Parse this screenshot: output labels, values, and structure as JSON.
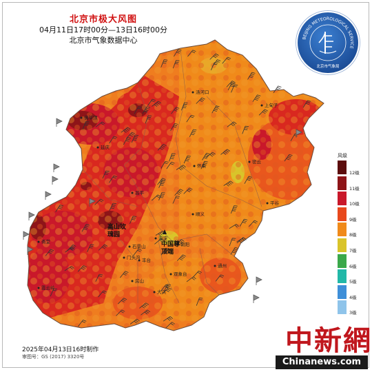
{
  "title": "北京市极大风图",
  "period": "04月11日17时00分—13日16时00分",
  "issuer": "北京市气象数据中心",
  "seal": {
    "ring_text": "BEIJING METEOROLOGICAL SERVICE",
    "name": "北京市气象局"
  },
  "legend": {
    "title": "风级",
    "levels": [
      {
        "label": "12级",
        "color": "#5c0d0d"
      },
      {
        "label": "11级",
        "color": "#8e1418"
      },
      {
        "label": "10级",
        "color": "#c9182a"
      },
      {
        "label": "9级",
        "color": "#e8481c"
      },
      {
        "label": "8级",
        "color": "#f08a1a"
      },
      {
        "label": "7级",
        "color": "#d9c42a"
      },
      {
        "label": "6级",
        "color": "#3aa84a"
      },
      {
        "label": "5级",
        "color": "#22b8a8"
      },
      {
        "label": "4级",
        "color": "#3e8fd8"
      },
      {
        "label": "3级",
        "color": "#8fc4ea"
      }
    ]
  },
  "places": [
    {
      "name": "上甸子"
    },
    {
      "name": "汤河口"
    },
    {
      "name": "佛爷顶"
    },
    {
      "name": "延庆"
    },
    {
      "name": "怀柔"
    },
    {
      "name": "密云"
    },
    {
      "name": "昌平"
    },
    {
      "name": "顺义"
    },
    {
      "name": "平谷"
    },
    {
      "name": "海淀"
    },
    {
      "name": "朝阳"
    },
    {
      "name": "石景山"
    },
    {
      "name": "门头沟"
    },
    {
      "name": "丰台"
    },
    {
      "name": "通州"
    },
    {
      "name": "房山"
    },
    {
      "name": "观象台"
    },
    {
      "name": "大兴"
    },
    {
      "name": "霞云岭"
    },
    {
      "name": "斋堂"
    }
  ],
  "highlights": [
    {
      "name": "高山玫瑰园"
    },
    {
      "name": "中国尊顶端"
    }
  ],
  "footer": {
    "made": "2025年04月13日16时制作",
    "review": "审图号：GS (2017) 3320号"
  },
  "watermark": {
    "chinese": "中新網",
    "english": "Chinanews.com"
  }
}
